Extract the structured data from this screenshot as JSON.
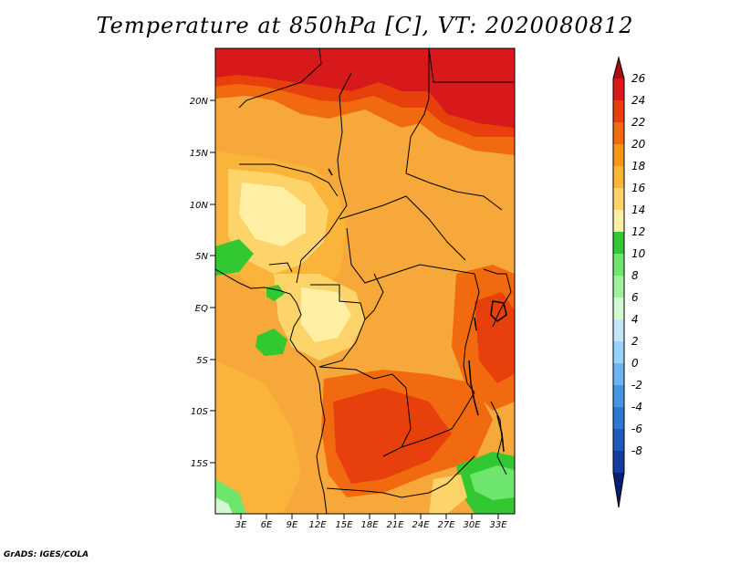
{
  "title": "Temperature at 850hPa [C], VT: 2020080812",
  "credit": "GrADS: IGES/COLA",
  "map": {
    "variable": "Temperature at 850hPa",
    "units": "C",
    "valid_time": "2020080812",
    "lat_labels": [
      "20N",
      "15N",
      "10N",
      "5N",
      "EQ",
      "5S",
      "10S",
      "15S"
    ],
    "lon_labels": [
      "3E",
      "6E",
      "9E",
      "12E",
      "15E",
      "18E",
      "21E",
      "24E",
      "27E",
      "30E",
      "33E"
    ]
  },
  "colorbar": {
    "labels": [
      "26",
      "24",
      "22",
      "20",
      "18",
      "16",
      "14",
      "12",
      "10",
      "8",
      "6",
      "4",
      "2",
      "0",
      "-2",
      "-4",
      "-6",
      "-8"
    ],
    "colors": [
      "#a50f15",
      "#d7191c",
      "#e8400c",
      "#f26a0f",
      "#f7951a",
      "#fbb43a",
      "#fdd469",
      "#fff0a5",
      "#32c832",
      "#6ee66e",
      "#a0f0a0",
      "#d2f8d2",
      "#c3e6f7",
      "#96d2fa",
      "#6eb4f0",
      "#4696e6",
      "#2d78d2",
      "#1e5abe",
      "#143ca0",
      "#0a1e78"
    ]
  }
}
